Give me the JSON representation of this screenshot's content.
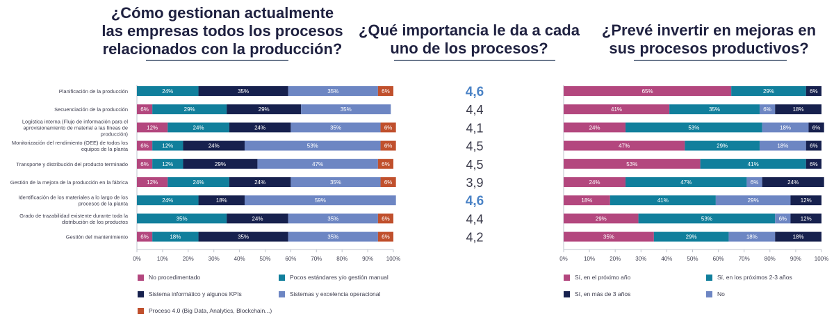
{
  "titles": {
    "left": [
      "¿Cómo gestionan actualmente",
      "las empresas todos los procesos",
      "relacionados con la producción?"
    ],
    "middle": [
      "¿Qué importancia le da a cada",
      "uno de los procesos?"
    ],
    "right": [
      "¿Prevé invertir en mejoras en",
      "sus procesos productivos?"
    ]
  },
  "colors": {
    "magenta": "#b3477e",
    "teal": "#117f9c",
    "navy": "#17214e",
    "blue": "#6d86c3",
    "orange": "#c0502d",
    "highlight": "#4b83c6"
  },
  "chart_data": [
    {
      "type": "bar",
      "orientation": "horizontal-stacked",
      "categories": [
        [
          "Planificación de la producción"
        ],
        [
          "Secuenciación de la producción"
        ],
        [
          "Logística interna (Flujo de información para el",
          "aprovisionamiento de material a las líneas de",
          "producción)"
        ],
        [
          "Monitorización del rendimiento (OEE) de todos los",
          "equipos de la planta"
        ],
        [
          "Transporte y distribución del producto terminado"
        ],
        [
          "Gestión de la mejora de la producción en la fábrica"
        ],
        [
          "Identificación de los materiales a lo largo de los",
          "procesos de la planta"
        ],
        [
          "Grado de trazabilidad existente durante toda la",
          "distribución de los productos"
        ],
        [
          "Gestión del mantenimiento"
        ]
      ],
      "series": [
        {
          "name": "No procedimentado",
          "color": "#b3477e",
          "values": [
            0,
            6,
            12,
            6,
            6,
            12,
            0,
            0,
            6
          ]
        },
        {
          "name": "Pocos estándares y/o gestión manual",
          "color": "#117f9c",
          "values": [
            24,
            29,
            24,
            12,
            12,
            24,
            24,
            35,
            18
          ]
        },
        {
          "name": "Sistema informático y algunos KPIs",
          "color": "#17214e",
          "values": [
            35,
            29,
            24,
            24,
            29,
            24,
            18,
            24,
            35
          ]
        },
        {
          "name": "Sistemas y excelencia operacional",
          "color": "#6d86c3",
          "values": [
            35,
            35,
            35,
            53,
            47,
            35,
            59,
            35,
            35
          ]
        },
        {
          "name": "Proceso 4.0 (Big Data, Analytics, Blockchain...)",
          "color": "#c0502d",
          "values": [
            6,
            0,
            6,
            6,
            6,
            6,
            0,
            6,
            6
          ]
        }
      ],
      "x_ticks": [
        "0%",
        "10%",
        "20%",
        "30%",
        "40%",
        "50%",
        "60%",
        "70%",
        "80%",
        "90%",
        "100%"
      ],
      "xlim": [
        0,
        100
      ]
    },
    {
      "type": "table",
      "values": [
        "4,6",
        "4,4",
        "4,1",
        "4,5",
        "4,5",
        "3,9",
        "4,6",
        "4,4",
        "4,2"
      ],
      "highlighted": [
        true,
        false,
        false,
        false,
        false,
        false,
        true,
        false,
        false
      ]
    },
    {
      "type": "bar",
      "orientation": "horizontal-stacked",
      "series": [
        {
          "name": "Sí, en el próximo año",
          "color": "#b3477e",
          "values": [
            65,
            41,
            24,
            47,
            53,
            24,
            18,
            29,
            35
          ]
        },
        {
          "name": "Sí, en los próximos 2-3 años",
          "color": "#117f9c",
          "values": [
            29,
            35,
            53,
            29,
            41,
            47,
            41,
            53,
            29
          ]
        },
        {
          "name": "No",
          "color": "#6d86c3",
          "values": [
            0,
            6,
            18,
            18,
            0,
            6,
            29,
            6,
            18
          ]
        },
        {
          "name": "Sí, en más de 3 años",
          "color": "#17214e",
          "values": [
            6,
            18,
            6,
            6,
            6,
            24,
            12,
            12,
            18
          ]
        }
      ],
      "x_ticks": [
        "0%",
        "10%",
        "20%",
        "30%",
        "40%",
        "50%",
        "60%",
        "70%",
        "80%",
        "90%",
        "100%"
      ],
      "xlim": [
        0,
        100
      ]
    }
  ],
  "legends": {
    "left": [
      {
        "label": "No procedimentado",
        "color": "#b3477e"
      },
      {
        "label": "Pocos estándares y/o gestión manual",
        "color": "#117f9c"
      },
      {
        "label": "Sistema informático y algunos KPIs",
        "color": "#17214e"
      },
      {
        "label": "Sistemas y excelencia operacional",
        "color": "#6d86c3"
      },
      {
        "label": "Proceso 4.0 (Big Data, Analytics, Blockchain...)",
        "color": "#c0502d"
      }
    ],
    "right": [
      {
        "label": "Sí, en el próximo año",
        "color": "#b3477e"
      },
      {
        "label": "Sí, en los próximos 2-3 años",
        "color": "#117f9c"
      },
      {
        "label": "Sí, en más de 3 años",
        "color": "#17214e"
      },
      {
        "label": "No",
        "color": "#6d86c3"
      }
    ]
  }
}
